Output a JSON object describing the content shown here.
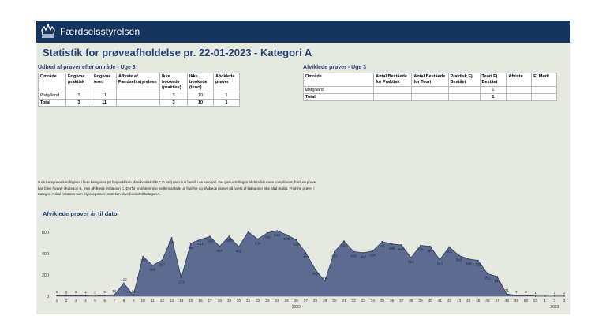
{
  "brand": "Færdselsstyrelsen",
  "page_title": "Statistik for prøveafholdelse pr. 22-01-2023 - Kategori A",
  "left_table": {
    "title": "Udbud af prøver efter område - Uge 3",
    "headers": [
      "Område",
      "Frigivne praktisk",
      "Frigivne teori",
      "Aflyste af Færdselsstyrelsen",
      "Ikke bookede (praktisk)",
      "Ikke bookede (teori)",
      "Afviklede prøver"
    ],
    "rows": [
      [
        "Østjylland",
        "3",
        "11",
        "",
        "3",
        "10",
        "1"
      ],
      [
        "Total",
        "3",
        "11",
        "",
        "3",
        "10",
        "1"
      ]
    ]
  },
  "right_table": {
    "title": "Afviklede prøver - Uge 3",
    "headers": [
      "Område",
      "Antal Beståede for Praktisk",
      "Antal Beståede for Teori",
      "Praktisk Ej Bestået",
      "Teori Ej Bestået",
      "Afviste",
      "Ej Mødt"
    ],
    "rows": [
      [
        "Østjylland",
        "",
        "",
        "",
        "1",
        "",
        ""
      ],
      [
        "Total",
        "",
        "",
        "",
        "1",
        "",
        ""
      ]
    ]
  },
  "footnote": "*I en køreprøve kan frigives i flere kategorier (et bispunkt kan blive booket til B,C,D osv) men kun bestilt i en kategori. Det gør udstillingen af data lidt mere kompliceret, fordi en prøve kan blive frigivet i Kategori B, men afviklede i Kategori C. Derfor er afstemning mellem antallet af frigivne og afviklede prøver på tværs af kategorier ikke altid muligt. Frigivne prøver i Kategori A skal forløstes som frigivne prøver, som kan blive booket til kategori A.",
  "chart_title": "Afviklede prøver år til dato",
  "colors": {
    "header": "#15355f",
    "area": "#5c6b8f",
    "title": "#1f3f75",
    "panel": "#e6e9df"
  },
  "chart_data": {
    "type": "area",
    "title": "Afviklede prøver år til dato",
    "x": [
      "1",
      "2",
      "3",
      "4",
      "5",
      "6",
      "7",
      "8",
      "9",
      "10",
      "11",
      "12",
      "13",
      "14",
      "15",
      "16",
      "17",
      "18",
      "19",
      "20",
      "21",
      "22",
      "23",
      "24",
      "25",
      "26",
      "27",
      "28",
      "29",
      "30",
      "31",
      "32",
      "33",
      "34",
      "35",
      "36",
      "37",
      "38",
      "39",
      "40",
      "41",
      "42",
      "43",
      "44",
      "45",
      "46",
      "47",
      "48",
      "49",
      "50",
      "51",
      "1",
      "2",
      "3"
    ],
    "values": [
      6,
      5,
      6,
      4,
      2,
      9,
      14,
      122,
      10,
      372,
      290,
      337,
      546,
      173,
      496,
      531,
      559,
      467,
      561,
      462,
      602,
      534,
      594,
      613,
      575,
      528,
      407,
      252,
      141,
      417,
      516,
      418,
      407,
      424,
      511,
      489,
      480,
      361,
      475,
      467,
      343,
      462,
      382,
      349,
      335,
      211,
      184,
      21,
      7,
      8,
      1,
      1,
      1,
      1
    ],
    "value_labels": [
      "6",
      "5",
      "6",
      "4",
      "2",
      "9",
      "14",
      "122",
      "10",
      "372",
      "290",
      "337",
      "546",
      "173",
      "496",
      "531",
      "559",
      "467",
      "561",
      "462",
      "",
      "534",
      "594",
      "613",
      "575",
      "528",
      "407",
      "252",
      "141",
      "417",
      "516",
      "418",
      "407",
      "424",
      "511",
      "489",
      "480",
      "361",
      "475",
      "467",
      "343",
      "462",
      "382",
      "349",
      "335",
      "211",
      "184",
      "21",
      "7",
      "8",
      "1",
      "",
      "1",
      "1"
    ],
    "year_labels": [
      "2022",
      "2023"
    ],
    "y_ticks": [
      "0",
      "200",
      "400",
      "600"
    ],
    "ylim": [
      0,
      650
    ]
  }
}
